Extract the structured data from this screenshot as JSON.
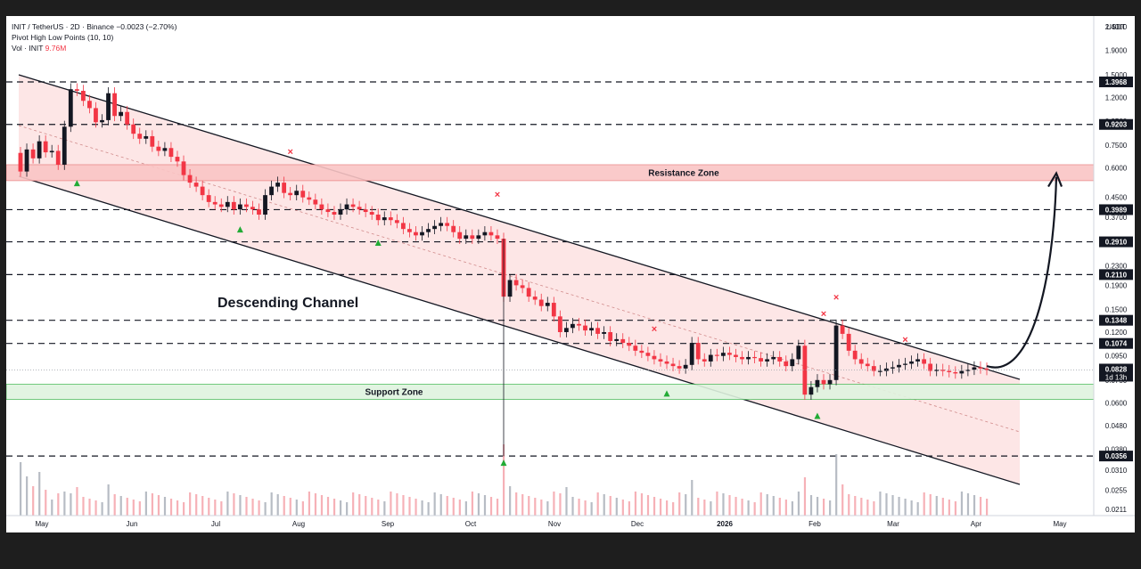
{
  "header": {
    "symbol_line": "INIT / TetherUS · 2D · Binance",
    "change": "−0.0023 (−2.70%)",
    "indicator": "Pivot High Low Points (10, 10)",
    "volume_label": "Vol · INIT",
    "volume_value": "9.76M"
  },
  "colors": {
    "up": "#131722",
    "down": "#f23645",
    "channel_fill": "#fde2e2",
    "resistance_fill": "#f9c4c4",
    "support_fill": "#dff3df",
    "pivot_high": "#f23645",
    "pivot_low": "#22ab36"
  },
  "chart_data": {
    "type": "candlestick",
    "scale": "log",
    "currency_label": "USDT",
    "x_ticks": [
      "May",
      "Jun",
      "Jul",
      "Aug",
      "Sep",
      "Oct",
      "Nov",
      "Dec",
      "2026",
      "Feb",
      "Mar",
      "Apr",
      "May"
    ],
    "y_ticks": [
      "2.4000",
      "1.9000",
      "1.5000",
      "1.2000",
      "0.9500",
      "0.7500",
      "0.6000",
      "0.4500",
      "0.3700",
      "0.2900",
      "0.2300",
      "0.1900",
      "0.1500",
      "0.1200",
      "0.0950",
      "0.0750",
      "0.0600",
      "0.0480",
      "0.0380",
      "0.0310",
      "0.0255",
      "0.0211"
    ],
    "level_labels": [
      "1.3968",
      "0.9203",
      "0.3989",
      "0.2910",
      "0.2110",
      "0.1348",
      "0.1074",
      "0.0356"
    ],
    "current_price": {
      "value": "0.0828",
      "countdown": "1d 13h"
    },
    "resistance_zone": {
      "label": "Resistance Zone",
      "low": 0.53,
      "high": 0.62
    },
    "support_zone": {
      "label": "Support Zone",
      "low": 0.062,
      "high": 0.072
    },
    "annotation": "Descending Channel",
    "closes": [
      0.58,
      0.72,
      0.66,
      0.78,
      0.7,
      0.71,
      0.62,
      0.9,
      1.3,
      1.28,
      1.16,
      1.08,
      0.94,
      0.96,
      1.25,
      1.0,
      1.04,
      0.92,
      0.84,
      0.8,
      0.82,
      0.74,
      0.71,
      0.73,
      0.67,
      0.64,
      0.56,
      0.52,
      0.5,
      0.46,
      0.43,
      0.42,
      0.41,
      0.43,
      0.4,
      0.42,
      0.41,
      0.4,
      0.38,
      0.46,
      0.5,
      0.52,
      0.47,
      0.46,
      0.48,
      0.45,
      0.44,
      0.42,
      0.4,
      0.39,
      0.38,
      0.4,
      0.42,
      0.41,
      0.4,
      0.39,
      0.38,
      0.36,
      0.37,
      0.36,
      0.35,
      0.33,
      0.32,
      0.31,
      0.32,
      0.33,
      0.34,
      0.35,
      0.34,
      0.32,
      0.3,
      0.31,
      0.3,
      0.31,
      0.32,
      0.31,
      0.3,
      0.17,
      0.2,
      0.19,
      0.185,
      0.17,
      0.165,
      0.155,
      0.16,
      0.14,
      0.12,
      0.125,
      0.13,
      0.128,
      0.122,
      0.125,
      0.118,
      0.12,
      0.11,
      0.112,
      0.108,
      0.105,
      0.1,
      0.098,
      0.095,
      0.092,
      0.09,
      0.088,
      0.086,
      0.084,
      0.087,
      0.108,
      0.092,
      0.09,
      0.096,
      0.095,
      0.098,
      0.096,
      0.094,
      0.092,
      0.094,
      0.093,
      0.09,
      0.092,
      0.094,
      0.09,
      0.086,
      0.092,
      0.105,
      0.065,
      0.07,
      0.075,
      0.072,
      0.075,
      0.128,
      0.118,
      0.1,
      0.092,
      0.088,
      0.086,
      0.082,
      0.082,
      0.084,
      0.085,
      0.087,
      0.088,
      0.09,
      0.092,
      0.088,
      0.082,
      0.083,
      0.082,
      0.081,
      0.08,
      0.082,
      0.083,
      0.085,
      0.084,
      0.0828
    ],
    "candles_shown": "approximate daily (2D) OHLC reconstruction",
    "pivot_highs": 6,
    "pivot_lows": 6
  }
}
